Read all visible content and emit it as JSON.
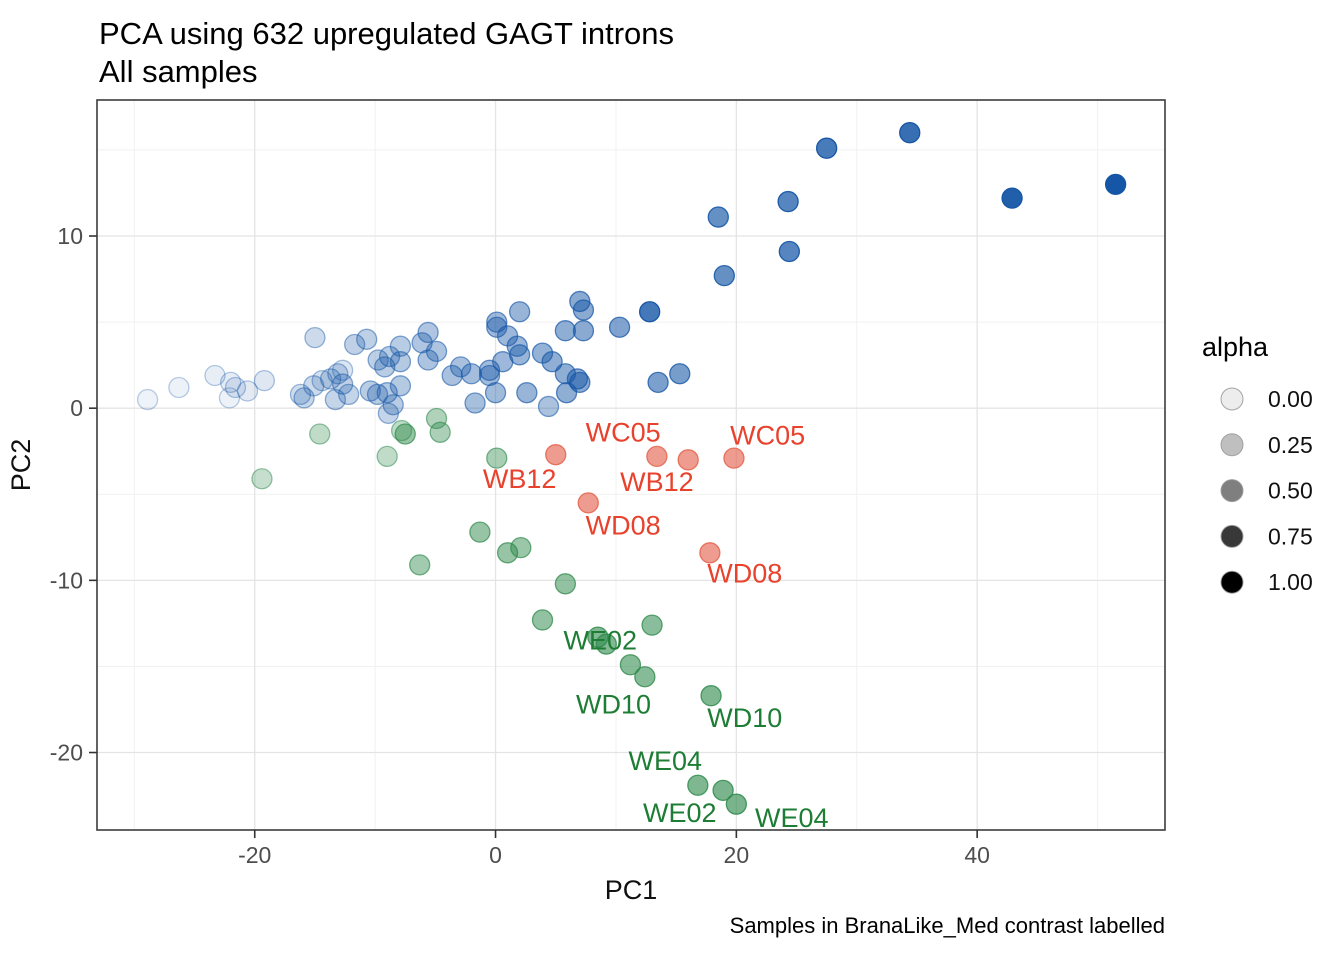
{
  "title": "PCA using 632 upregulated GAGT introns",
  "subtitle": "All samples",
  "caption": "Samples in BranaLike_Med contrast labelled",
  "axes": {
    "x_label": "PC1",
    "y_label": "PC2"
  },
  "legend": {
    "title": "alpha",
    "entries": [
      {
        "label": "0.00",
        "alpha": 0.07
      },
      {
        "label": "0.25",
        "alpha": 0.25
      },
      {
        "label": "0.50",
        "alpha": 0.5
      },
      {
        "label": "0.75",
        "alpha": 0.78
      },
      {
        "label": "1.00",
        "alpha": 1.0
      }
    ]
  },
  "colors": {
    "blue_point": "#1556a6",
    "green_point": "#2f8a4c",
    "salmon_point": "#e4604a",
    "red_label": "#e8412c",
    "green_label": "#1e7d34",
    "grid_major": "#e4e4e4",
    "grid_minor": "#f1f1f1",
    "panel_border": "#3c3c3c",
    "tick_text": "#4d4d4d"
  },
  "chart_data": {
    "type": "scatter",
    "title": "PCA using 632 upregulated GAGT introns",
    "subtitle": "All samples",
    "xlabel": "PC1",
    "ylabel": "PC2",
    "xlim": [
      -33.1,
      55.6
    ],
    "ylim": [
      -24.5,
      17.9
    ],
    "xticks": [
      -20,
      0,
      20,
      40
    ],
    "yticks": [
      10,
      0,
      -10,
      -20
    ],
    "x_minor": [
      -30,
      -10,
      10,
      30,
      50
    ],
    "y_minor": [
      15,
      5,
      -5,
      -15
    ],
    "legend_title": "alpha",
    "legend_labels": [
      "0.00",
      "0.25",
      "0.50",
      "0.75",
      "1.00"
    ],
    "alpha_note": "point opacity encodes alpha aesthetic, increasing with PC1",
    "series": [
      {
        "name": "blue_samples",
        "color": "#1556a6",
        "points": [
          [
            -28.9,
            0.5,
            0.07
          ],
          [
            -26.3,
            1.2,
            0.08
          ],
          [
            -23.3,
            1.9,
            0.1
          ],
          [
            -22.1,
            0.6,
            0.08
          ],
          [
            -22.0,
            1.5,
            0.11
          ],
          [
            -21.6,
            1.2,
            0.12
          ],
          [
            -20.6,
            1.0,
            0.12
          ],
          [
            -19.2,
            1.6,
            0.14
          ],
          [
            -16.2,
            0.8,
            0.2
          ],
          [
            -15.9,
            0.6,
            0.24
          ],
          [
            -15.1,
            1.3,
            0.22
          ],
          [
            -15.0,
            4.1,
            0.22
          ],
          [
            -14.4,
            1.6,
            0.18
          ],
          [
            -13.7,
            1.7,
            0.22
          ],
          [
            -13.3,
            0.5,
            0.25
          ],
          [
            -13.1,
            2.0,
            0.22
          ],
          [
            -12.7,
            2.2,
            0.15
          ],
          [
            -12.7,
            1.4,
            0.27
          ],
          [
            -12.2,
            0.8,
            0.25
          ],
          [
            -11.7,
            3.7,
            0.27
          ],
          [
            -10.7,
            4.0,
            0.28
          ],
          [
            -10.4,
            1.0,
            0.3
          ],
          [
            -9.8,
            0.8,
            0.3
          ],
          [
            -9.75,
            2.8,
            0.28
          ],
          [
            -9.2,
            2.4,
            0.3
          ],
          [
            -9.0,
            0.9,
            0.32
          ],
          [
            -8.9,
            -0.3,
            0.25
          ],
          [
            -8.8,
            3.0,
            0.3
          ],
          [
            -8.5,
            0.2,
            0.3
          ],
          [
            -7.9,
            3.6,
            0.3
          ],
          [
            -7.9,
            2.7,
            0.32
          ],
          [
            -7.9,
            1.3,
            0.32
          ],
          [
            -6.1,
            3.8,
            0.34
          ],
          [
            -5.6,
            4.4,
            0.34
          ],
          [
            -5.6,
            2.8,
            0.35
          ],
          [
            -4.9,
            3.3,
            0.35
          ],
          [
            -3.6,
            1.9,
            0.37
          ],
          [
            -2.9,
            2.4,
            0.37
          ],
          [
            -2.0,
            2.0,
            0.39
          ],
          [
            -1.7,
            0.3,
            0.38
          ],
          [
            -0.5,
            2.2,
            0.4
          ],
          [
            -0.5,
            1.9,
            0.4
          ],
          [
            0.0,
            0.9,
            0.4
          ],
          [
            0.1,
            5.0,
            0.41
          ],
          [
            0.1,
            4.7,
            0.41
          ],
          [
            0.6,
            2.7,
            0.42
          ],
          [
            1.0,
            4.2,
            0.42
          ],
          [
            1.8,
            3.6,
            0.43
          ],
          [
            2.0,
            5.6,
            0.44
          ],
          [
            2.0,
            3.1,
            0.44
          ],
          [
            2.6,
            0.9,
            0.44
          ],
          [
            3.9,
            3.2,
            0.46
          ],
          [
            4.4,
            0.1,
            0.36
          ],
          [
            4.7,
            2.7,
            0.47
          ],
          [
            5.8,
            4.5,
            0.48
          ],
          [
            5.8,
            2.0,
            0.48
          ],
          [
            5.9,
            0.9,
            0.48
          ],
          [
            6.8,
            1.7,
            0.5
          ],
          [
            7.0,
            1.5,
            0.5
          ],
          [
            7.0,
            6.2,
            0.5
          ],
          [
            7.3,
            5.7,
            0.5
          ],
          [
            7.3,
            4.5,
            0.5
          ],
          [
            10.3,
            4.7,
            0.54
          ],
          [
            12.8,
            5.6,
            0.8
          ],
          [
            13.5,
            1.5,
            0.56
          ],
          [
            15.3,
            2.0,
            0.58
          ],
          [
            18.5,
            11.1,
            0.66
          ],
          [
            19.0,
            7.7,
            0.66
          ],
          [
            24.3,
            12.0,
            0.72
          ],
          [
            24.4,
            9.1,
            0.72
          ],
          [
            27.5,
            15.1,
            0.78
          ],
          [
            34.4,
            16.0,
            0.85
          ],
          [
            42.9,
            12.2,
            0.95
          ],
          [
            51.5,
            13.0,
            1.0
          ]
        ]
      },
      {
        "name": "green_samples",
        "color": "#2f8a4c",
        "points": [
          [
            -19.4,
            -4.1,
            0.28
          ],
          [
            -14.6,
            -1.5,
            0.3
          ],
          [
            -9.0,
            -2.8,
            0.3
          ],
          [
            -7.8,
            -1.3,
            0.3
          ],
          [
            -7.5,
            -1.5,
            0.5
          ],
          [
            -4.9,
            -0.6,
            0.38
          ],
          [
            -4.6,
            -1.4,
            0.4
          ],
          [
            0.1,
            -2.9,
            0.42
          ],
          [
            -1.3,
            -7.2,
            0.5
          ],
          [
            1.0,
            -8.4,
            0.5
          ],
          [
            2.1,
            -8.1,
            0.48
          ],
          [
            -6.3,
            -9.1,
            0.45
          ],
          [
            5.8,
            -10.2,
            0.52
          ],
          [
            3.9,
            -12.3,
            0.52
          ],
          [
            8.5,
            -13.3,
            0.6
          ],
          [
            9.2,
            -13.7,
            0.6
          ],
          [
            13.0,
            -12.6,
            0.56
          ],
          [
            11.2,
            -14.9,
            0.58
          ],
          [
            12.4,
            -15.6,
            0.58
          ],
          [
            17.9,
            -16.7,
            0.62
          ],
          [
            16.8,
            -21.9,
            0.62
          ],
          [
            18.9,
            -22.2,
            0.64
          ],
          [
            20.0,
            -23.0,
            0.64
          ]
        ]
      },
      {
        "name": "branalike_med_samples_salmon",
        "color": "#e4604a",
        "points": [
          [
            5.0,
            -2.7,
            0.62
          ],
          [
            13.4,
            -2.8,
            0.62
          ],
          [
            16.0,
            -3.0,
            0.62
          ],
          [
            19.8,
            -2.9,
            0.62
          ],
          [
            7.7,
            -5.5,
            0.62
          ],
          [
            17.8,
            -8.4,
            0.62
          ]
        ]
      }
    ],
    "point_labels": [
      {
        "text": "WC05",
        "x": 10.6,
        "y": -1.4,
        "color": "#e8412c"
      },
      {
        "text": "WC05",
        "x": 22.6,
        "y": -1.6,
        "color": "#e8412c"
      },
      {
        "text": "WB12",
        "x": 2.0,
        "y": -4.1,
        "color": "#e8412c"
      },
      {
        "text": "WB12",
        "x": 13.4,
        "y": -4.3,
        "color": "#e8412c"
      },
      {
        "text": "WD08",
        "x": 10.6,
        "y": -6.8,
        "color": "#e8412c"
      },
      {
        "text": "WD08",
        "x": 20.7,
        "y": -9.6,
        "color": "#e8412c"
      },
      {
        "text": "WE02",
        "x": 8.7,
        "y": -13.5,
        "color": "#1e7d34"
      },
      {
        "text": "WD10",
        "x": 9.8,
        "y": -17.2,
        "color": "#1e7d34"
      },
      {
        "text": "WD10",
        "x": 20.7,
        "y": -18.0,
        "color": "#1e7d34"
      },
      {
        "text": "WE04",
        "x": 14.1,
        "y": -20.5,
        "color": "#1e7d34"
      },
      {
        "text": "WE02",
        "x": 15.3,
        "y": -23.5,
        "color": "#1e7d34"
      },
      {
        "text": "WE04",
        "x": 24.6,
        "y": -23.8,
        "color": "#1e7d34"
      }
    ]
  }
}
